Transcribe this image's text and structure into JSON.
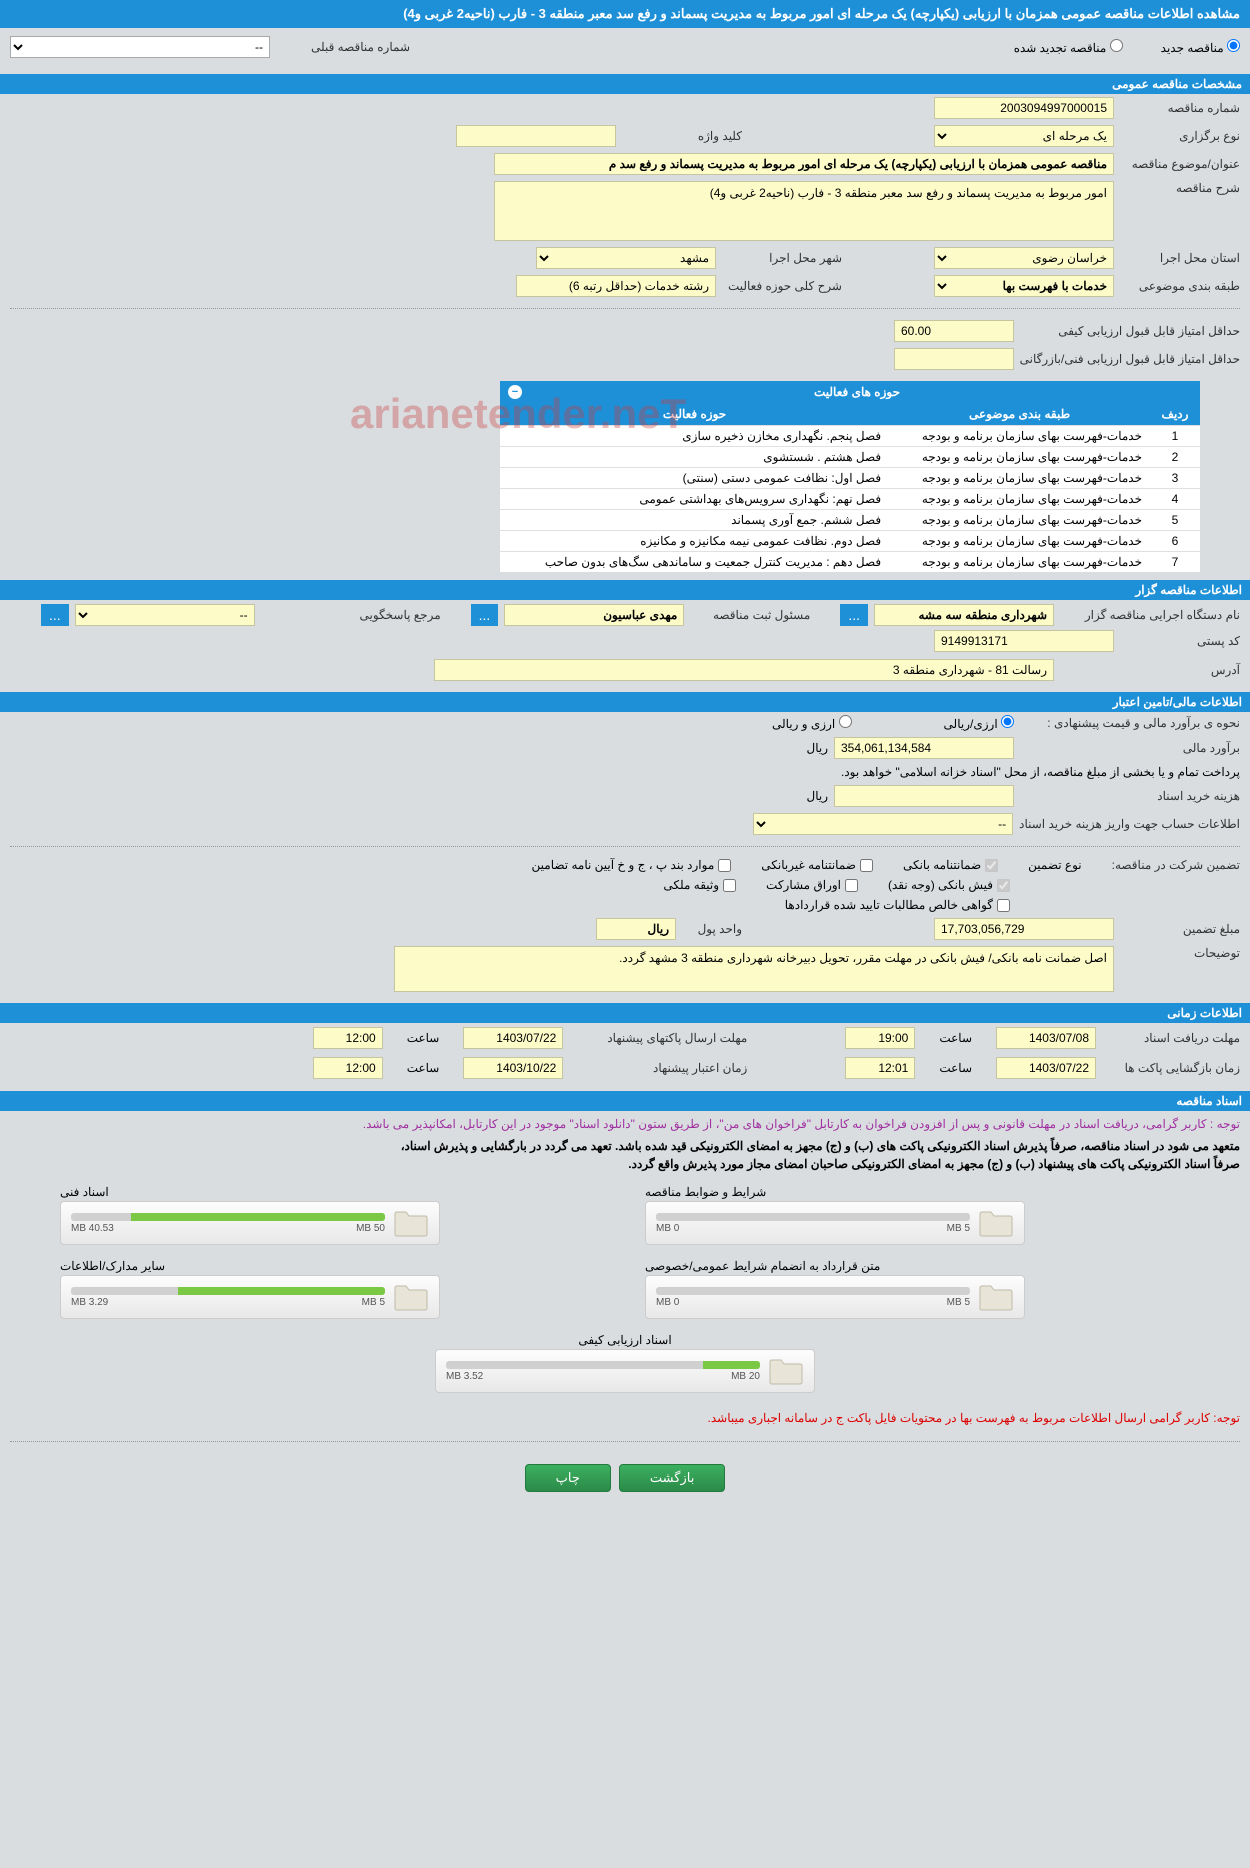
{
  "title": "مشاهده اطلاعات مناقصه عمومی همزمان با ارزیابی (یکپارچه) یک مرحله ای امور مربوط به مدیریت پسماند و رفع سد معبر منطقه 3 - فارب (ناحیه2 غربی و4)",
  "radios": {
    "new": "مناقصه جدید",
    "renewed": "مناقصه تجدید شده",
    "prev_label": "شماره مناقصه قبلی",
    "prev_value": "--"
  },
  "sections": {
    "general": "مشخصات مناقصه عمومی",
    "owner": "اطلاعات مناقصه گزار",
    "finance": "اطلاعات مالی/تامین اعتبار",
    "time": "اطلاعات زمانی",
    "docs": "اسناد مناقصه"
  },
  "general": {
    "number_label": "شماره مناقصه",
    "number": "2003094997000015",
    "type_label": "نوع برگزاری",
    "type": "یک مرحله ای",
    "keyword_label": "کلید واژه",
    "keyword": "",
    "subject_label": "عنوان/موضوع مناقصه",
    "subject": "مناقصه عمومی همزمان با ارزیابی (یکپارچه) یک مرحله ای امور مربوط به مدیریت پسماند و رفع سد م",
    "desc_label": "شرح مناقصه",
    "desc": "امور مربوط به مدیریت پسماند و رفع سد معبر منطقه 3 - فارب (ناحیه2 غربی و4)",
    "province_label": "استان محل اجرا",
    "province": "خراسان رضوی",
    "city_label": "شهر محل اجرا",
    "city": "مشهد",
    "category_label": "طبقه بندی موضوعی",
    "category": "خدمات با فهرست بها",
    "field_label": "شرح کلی حوزه فعالیت",
    "field": "رشته خدمات (حداقل رتبه 6)",
    "min_quality_label": "حداقل امتیاز قابل قبول ارزیابی کیفی",
    "min_quality": "60.00",
    "min_tech_label": "حداقل امتیاز قابل قبول ارزیابی فنی/بازرگانی",
    "min_tech": ""
  },
  "activity": {
    "title": "حوزه های فعالیت",
    "col_row": "ردیف",
    "col_cat": "طبقه بندی موضوعی",
    "col_field": "حوزه فعالیت",
    "rows": [
      {
        "n": "1",
        "cat": "خدمات-فهرست بهای سازمان برنامه و بودجه",
        "field": "فصل پنجم. نگهداری مخازن ذخیره سازی"
      },
      {
        "n": "2",
        "cat": "خدمات-فهرست بهای سازمان برنامه و بودجه",
        "field": "فصل هشتم . شستشوی"
      },
      {
        "n": "3",
        "cat": "خدمات-فهرست بهای سازمان برنامه و بودجه",
        "field": "فصل اول: نظافت عمومی دستی (سنتی)"
      },
      {
        "n": "4",
        "cat": "خدمات-فهرست بهای سازمان برنامه و بودجه",
        "field": "فصل نهم: نگهداری سرویس‌های بهداشتی عمومی"
      },
      {
        "n": "5",
        "cat": "خدمات-فهرست بهای سازمان برنامه و بودجه",
        "field": "فصل ششم. جمع آوری پسماند"
      },
      {
        "n": "6",
        "cat": "خدمات-فهرست بهای سازمان برنامه و بودجه",
        "field": "فصل دوم. نظافت عمومی نیمه مکانیزه و مکانیزه"
      },
      {
        "n": "7",
        "cat": "خدمات-فهرست بهای سازمان برنامه و بودجه",
        "field": "فصل دهم : مدیریت کنترل جمعیت و ساماندهی سگ‌های بدون صاحب"
      }
    ]
  },
  "owner": {
    "org_label": "نام دستگاه اجرایی مناقصه گزار",
    "org": "شهرداری منطقه سه مشه",
    "reg_label": "مسئول ثبت مناقصه",
    "reg": "مهدی عباسیون",
    "ref_label": "مرجع پاسخگویی",
    "ref": "--",
    "postal_label": "کد پستی",
    "postal": "9149913171",
    "addr_label": "آدرس",
    "addr": "رسالت 81 - شهرداری منطقه 3"
  },
  "finance": {
    "method_label": "نحوه ی برآورد مالی و قیمت پیشنهادی :",
    "opt_rial": "ارزی/ریالی",
    "opt_arz": "ارزی و ریالی",
    "estimate_label": "برآورد مالی",
    "estimate": "354,061,134,584",
    "rial": "ریال",
    "payment_note": "پرداخت تمام و یا بخشی از مبلغ مناقصه، از محل \"اسناد خزانه اسلامی\" خواهد بود.",
    "doc_cost_label": "هزینه خرید اسناد",
    "doc_cost": "",
    "account_label": "اطلاعات حساب جهت واریز هزینه خرید اسناد",
    "account": "--",
    "guarantee_label": "تضمین شرکت در مناقصه:",
    "guarantee_type_label": "نوع تضمین",
    "chk_bank": "ضمانتنامه بانکی",
    "chk_nonbank": "ضمانتنامه غیربانکی",
    "chk_cases": "موارد بند پ ، ج و خ آیین نامه تضامین",
    "chk_cash": "فیش بانکی (وجه نقد)",
    "chk_shares": "اوراق مشارکت",
    "chk_prop": "وثیقه ملکی",
    "chk_confirmed": "گواهی خالص مطالبات تایید شده قراردادها",
    "amount_label": "مبلغ تضمین",
    "amount": "17,703,056,729",
    "unit_label": "واحد پول",
    "unit": "ریال",
    "notes_label": "توضیحات",
    "notes": "اصل ضمانت نامه بانکی/ فیش بانکی در مهلت مقرر، تحویل دبیرخانه شهرداری منطقه 3 مشهد گردد."
  },
  "time": {
    "receive_label": "مهلت دریافت اسناد",
    "receive_date": "1403/07/08",
    "hour_label": "ساعت",
    "receive_hour": "19:00",
    "send_label": "مهلت ارسال پاکتهای پیشنهاد",
    "send_date": "1403/07/22",
    "send_hour": "12:00",
    "open_label": "زمان بازگشایی پاکت ها",
    "open_date": "1403/07/22",
    "open_hour": "12:01",
    "valid_label": "زمان اعتبار پیشنهاد",
    "valid_date": "1403/10/22",
    "valid_hour": "12:00"
  },
  "notes": {
    "purple": "توجه : کاربر گرامی، دریافت اسناد در مهلت قانونی و پس از افزودن فراخوان به کارتابل \"فراخوان های من\"، از طریق ستون \"دانلود اسناد\" موجود در این کارتابل، امکانپذیر می باشد.",
    "black1": "متعهد می شود در اسناد مناقصه، صرفاً پذیرش اسناد الکترونیکی پاکت های (ب) و (ج) مجهز به امضای الکترونیکی قید شده باشد. تعهد می گردد در بارگشایی و پذیرش اسناد،",
    "black2": "صرفاً اسناد الکترونیکی پاکت های پیشنهاد (ب) و (ج) مجهز به امضای الکترونیکی صاحبان امضای مجاز مورد پذیرش واقع گردد.",
    "red": "توجه: کاربر گرامی ارسال اطلاعات مربوط به فهرست بها در محتویات فایل پاکت ج در سامانه اجباری میباشد."
  },
  "docs": [
    {
      "label": "شرایط و ضوابط مناقصه",
      "used": "0 MB",
      "total": "5 MB",
      "pct": 0
    },
    {
      "label": "اسناد فنی",
      "used": "40.53 MB",
      "total": "50 MB",
      "pct": 81
    },
    {
      "label": "متن قرارداد به انضمام شرایط عمومی/خصوصی",
      "used": "0 MB",
      "total": "5 MB",
      "pct": 0
    },
    {
      "label": "سایر مدارک/اطلاعات",
      "used": "3.29 MB",
      "total": "5 MB",
      "pct": 66
    },
    {
      "label": "اسناد ارزیابی کیفی",
      "used": "3.52 MB",
      "total": "20 MB",
      "pct": 18
    }
  ],
  "buttons": {
    "back": "بازگشت",
    "print": "چاپ"
  },
  "watermark": "arianetender.neT",
  "colors": {
    "header": "#1e90d8",
    "yellow": "#fdfcc9"
  }
}
